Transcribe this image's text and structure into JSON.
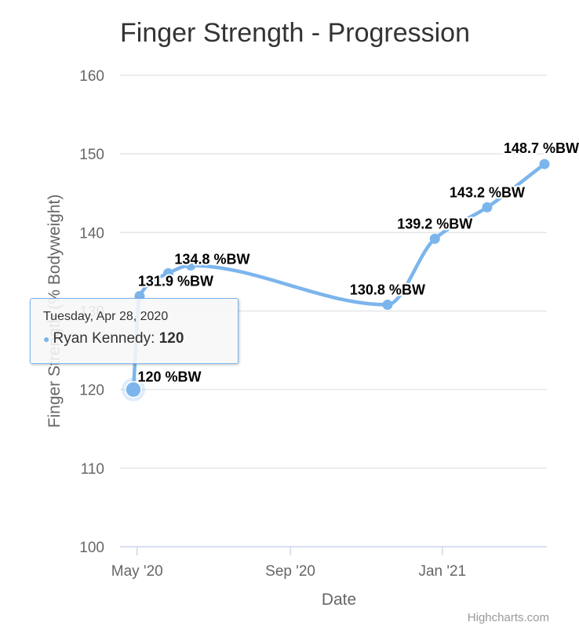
{
  "chart_data": {
    "type": "line",
    "title": "Finger Strength - Progression",
    "xlabel": "Date",
    "ylabel": "Finger Strength (% Bodyweight)",
    "ylim": [
      100,
      160
    ],
    "yticks": [
      "100",
      "110",
      "120",
      "130",
      "140",
      "150",
      "160"
    ],
    "xlim": [
      "2020-04-28",
      "2021-03-24"
    ],
    "xticks": [
      {
        "label": "May '20",
        "date": "2020-05-01"
      },
      {
        "label": "Sep '20",
        "date": "2020-09-01"
      },
      {
        "label": "Jan '21",
        "date": "2021-01-01"
      }
    ],
    "grid": true,
    "color": "#7cb5ec",
    "series": [
      {
        "name": "Ryan Kennedy",
        "points": [
          {
            "x": "2020-04-28",
            "y": 120,
            "label": "120 %BW"
          },
          {
            "x": "2020-05-03",
            "y": 131.9,
            "label": "131.9 %BW"
          },
          {
            "x": "2020-05-26",
            "y": 134.8,
            "label": "134.8 %BW"
          },
          {
            "x": "2020-06-13",
            "y": 135.8,
            "label": ""
          },
          {
            "x": "2020-11-18",
            "y": 130.8,
            "label": "130.8 %BW"
          },
          {
            "x": "2020-12-26",
            "y": 139.2,
            "label": "139.2 %BW"
          },
          {
            "x": "2021-02-06",
            "y": 143.2,
            "label": "143.2 %BW"
          },
          {
            "x": "2021-03-24",
            "y": 148.7,
            "label": "148.7 %BW"
          }
        ]
      }
    ],
    "tooltip": {
      "date": "Tuesday, Apr 28, 2020",
      "series": "Ryan Kennedy",
      "value": "120"
    },
    "credits": "Highcharts.com"
  }
}
